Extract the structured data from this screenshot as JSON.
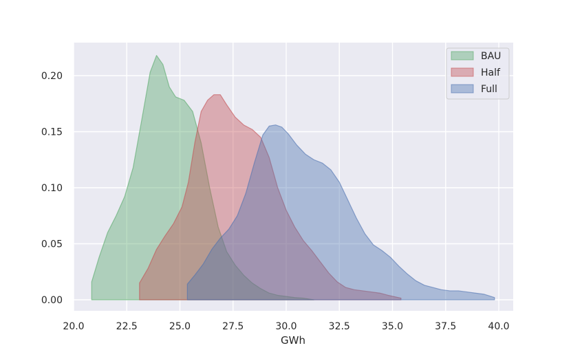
{
  "chart_data": {
    "type": "area",
    "title": "",
    "xlabel": "GWh",
    "ylabel": "",
    "xlim": [
      20.0,
      40.0
    ],
    "ylim": [
      -0.01,
      0.225
    ],
    "xticks": [
      20.0,
      22.5,
      25.0,
      27.5,
      30.0,
      32.5,
      35.0,
      37.5,
      40.0
    ],
    "xtick_labels": [
      "20.0",
      "22.5",
      "25.0",
      "27.5",
      "30.0",
      "32.5",
      "35.0",
      "37.5",
      "40.0"
    ],
    "yticks": [
      0.0,
      0.05,
      0.1,
      0.15,
      0.2
    ],
    "ytick_labels": [
      "0.00",
      "0.05",
      "0.10",
      "0.15",
      "0.20"
    ],
    "grid": true,
    "legend_position": "top-right",
    "series": [
      {
        "name": "BAU",
        "color": "#55a868",
        "x": [
          20.85,
          21.2,
          21.6,
          22.0,
          22.4,
          22.8,
          23.2,
          23.6,
          23.9,
          24.2,
          24.5,
          24.8,
          25.2,
          25.6,
          26.0,
          26.4,
          26.8,
          27.2,
          27.6,
          28.0,
          28.4,
          28.8,
          29.2,
          29.6,
          30.0,
          30.4,
          30.8,
          31.3
        ],
        "y": [
          0.016,
          0.038,
          0.06,
          0.075,
          0.092,
          0.118,
          0.16,
          0.203,
          0.218,
          0.21,
          0.19,
          0.181,
          0.178,
          0.168,
          0.14,
          0.1,
          0.065,
          0.043,
          0.031,
          0.022,
          0.015,
          0.01,
          0.006,
          0.004,
          0.003,
          0.002,
          0.0015,
          0.0
        ]
      },
      {
        "name": "Half",
        "color": "#c44e52",
        "x": [
          23.1,
          23.5,
          23.9,
          24.3,
          24.7,
          25.1,
          25.4,
          25.7,
          26.0,
          26.3,
          26.6,
          26.9,
          27.2,
          27.6,
          28.0,
          28.4,
          28.8,
          29.2,
          29.6,
          30.0,
          30.4,
          30.8,
          31.2,
          31.6,
          32.0,
          32.4,
          32.8,
          33.2,
          33.6,
          34.0,
          34.4,
          34.8,
          35.4
        ],
        "y": [
          0.015,
          0.028,
          0.045,
          0.057,
          0.068,
          0.083,
          0.105,
          0.14,
          0.168,
          0.178,
          0.183,
          0.183,
          0.174,
          0.163,
          0.156,
          0.152,
          0.145,
          0.127,
          0.1,
          0.08,
          0.065,
          0.053,
          0.044,
          0.034,
          0.024,
          0.016,
          0.011,
          0.009,
          0.008,
          0.007,
          0.006,
          0.004,
          0.0015
        ]
      },
      {
        "name": "Full",
        "color": "#4c72b0",
        "x": [
          25.35,
          25.7,
          26.1,
          26.5,
          26.9,
          27.3,
          27.7,
          28.1,
          28.5,
          28.9,
          29.2,
          29.5,
          29.8,
          30.1,
          30.5,
          30.9,
          31.3,
          31.7,
          32.1,
          32.5,
          32.9,
          33.3,
          33.7,
          34.1,
          34.5,
          34.9,
          35.3,
          35.7,
          36.1,
          36.5,
          36.9,
          37.3,
          37.7,
          38.1,
          38.5,
          38.9,
          39.3,
          39.8
        ],
        "y": [
          0.014,
          0.022,
          0.032,
          0.045,
          0.055,
          0.063,
          0.075,
          0.095,
          0.122,
          0.147,
          0.155,
          0.156,
          0.154,
          0.148,
          0.138,
          0.13,
          0.125,
          0.122,
          0.116,
          0.105,
          0.089,
          0.073,
          0.059,
          0.049,
          0.044,
          0.038,
          0.03,
          0.023,
          0.017,
          0.013,
          0.011,
          0.009,
          0.008,
          0.008,
          0.007,
          0.006,
          0.005,
          0.002
        ]
      }
    ]
  }
}
